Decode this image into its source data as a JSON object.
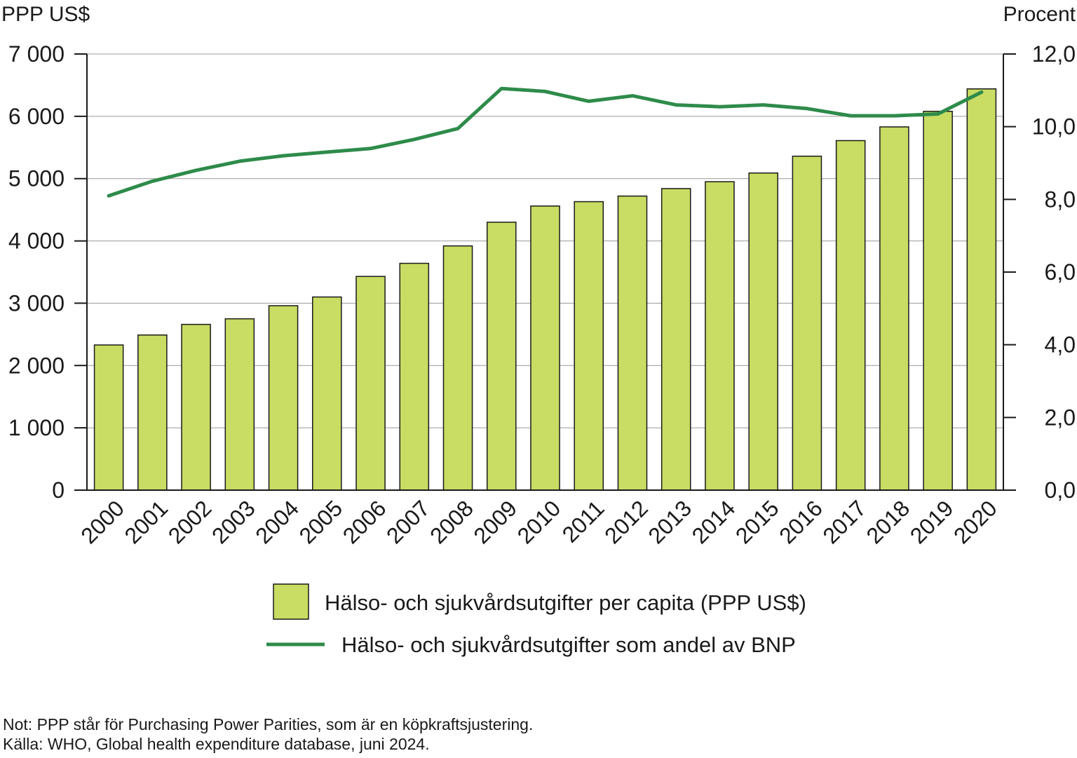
{
  "chart_data": {
    "type": "bar",
    "categories": [
      "2000",
      "2001",
      "2002",
      "2003",
      "2004",
      "2005",
      "2006",
      "2007",
      "2008",
      "2009",
      "2010",
      "2011",
      "2012",
      "2013",
      "2014",
      "2015",
      "2016",
      "2017",
      "2018",
      "2019",
      "2020"
    ],
    "series": [
      {
        "name": "Hälso- och sjukvårdsutgifter per capita (PPP US$)",
        "type": "bar",
        "axis": "left",
        "color": "#c9dc63",
        "values": [
          2330,
          2490,
          2660,
          2750,
          2960,
          3100,
          3430,
          3640,
          3920,
          4300,
          4560,
          4630,
          4720,
          4840,
          4950,
          5090,
          5360,
          5610,
          5830,
          6080,
          6440
        ]
      },
      {
        "name": "Hälso- och sjukvårdsutgifter som andel av BNP",
        "type": "line",
        "axis": "right",
        "color": "#2e8b4a",
        "values": [
          8.1,
          8.5,
          8.8,
          9.05,
          9.2,
          9.3,
          9.4,
          9.65,
          9.95,
          11.05,
          10.97,
          10.7,
          10.85,
          10.6,
          10.55,
          10.6,
          10.5,
          10.3,
          10.3,
          10.35,
          10.95
        ]
      }
    ],
    "ylabel": "PPP US$",
    "ylabel_right": "Procent",
    "ylim": [
      0,
      7000
    ],
    "ylim_right": [
      0,
      12
    ],
    "yticks": [
      "0",
      "1 000",
      "2 000",
      "3 000",
      "4 000",
      "5 000",
      "6 000",
      "7 000"
    ],
    "yticks_right": [
      "0,0",
      "2,0",
      "4,0",
      "6,0",
      "8,0",
      "10,0",
      "12,0"
    ],
    "grid": true,
    "legend_position": "bottom"
  },
  "notes": {
    "not": "Not: PPP står för Purchasing Power Parities, som är en köpkraftsjustering.",
    "kalla": "Källa: WHO, Global health expenditure database, juni 2024."
  }
}
